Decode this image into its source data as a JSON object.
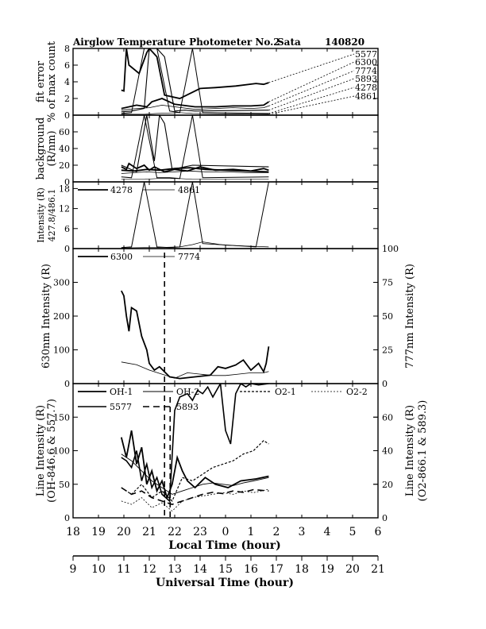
{
  "chart_data": {
    "title": "Airglow Temperature Photometer No.2",
    "station": "Sata",
    "date": "140820",
    "type": "line",
    "x_local": {
      "label": "Local Time (hour)",
      "range": [
        18,
        30
      ],
      "tick_labels": [
        "18",
        "19",
        "20",
        "21",
        "22",
        "23",
        "0",
        "1",
        "2",
        "3",
        "4",
        "5",
        "6"
      ]
    },
    "x_ut": {
      "label": "Universal Time (hour)",
      "range": [
        9,
        21
      ],
      "tick_labels": [
        "9",
        "10",
        "11",
        "12",
        "13",
        "14",
        "15",
        "16",
        "17",
        "18",
        "19",
        "20",
        "21"
      ]
    },
    "panels": [
      {
        "id": "fit_error",
        "ylabel": "fit error",
        "ylabel2": "% of max count",
        "ylim": [
          0,
          8
        ],
        "yticks": [
          "0",
          "2",
          "4",
          "6",
          "8"
        ],
        "legend": [
          "5577",
          "6300",
          "7774",
          "5893",
          "4278",
          "4861"
        ],
        "series": [
          {
            "name": "5577",
            "x": [
              19.9,
              20.0,
              20.1,
              20.2,
              20.6,
              20.9,
              21.0,
              21.3,
              21.6,
              22.2,
              23.0,
              23.6,
              24.4,
              25.2,
              25.5,
              25.7
            ],
            "y": [
              3.0,
              2.9,
              8.0,
              6.0,
              5.0,
              7.5,
              8.0,
              7.0,
              2.4,
              2.0,
              3.2,
              3.3,
              3.5,
              3.8,
              3.7,
              3.9
            ]
          },
          {
            "name": "6300",
            "x": [
              19.9,
              20.5,
              20.9,
              21.1,
              21.5,
              22.0,
              22.8,
              23.6,
              24.3,
              25.0,
              25.5,
              25.7
            ],
            "y": [
              0.8,
              1.2,
              1.0,
              1.6,
              2.0,
              1.3,
              1.0,
              1.0,
              1.1,
              1.1,
              1.2,
              1.6
            ]
          },
          {
            "name": "7774",
            "x": [
              19.9,
              20.5,
              21.0,
              21.5,
              22.0,
              22.8,
              23.6,
              24.3,
              25.0,
              25.5,
              25.7
            ],
            "y": [
              0.6,
              0.8,
              0.9,
              1.2,
              1.0,
              0.7,
              0.8,
              0.9,
              0.8,
              0.9,
              1.1
            ]
          },
          {
            "name": "5893",
            "x": [
              19.9,
              20.3,
              20.8,
              21.0,
              21.3,
              21.6,
              22.0,
              22.4,
              22.8,
              25.7
            ],
            "y": [
              0.4,
              0.5,
              0.8,
              8.0,
              8.0,
              7.0,
              0.5,
              0.6,
              0.5,
              0.6
            ]
          },
          {
            "name": "4278",
            "x": [
              19.9,
              20.3,
              20.8,
              21.3,
              21.8,
              22.2,
              22.7,
              23.1,
              25.7
            ],
            "y": [
              0.2,
              0.3,
              8.0,
              8.0,
              0.5,
              0.3,
              8.0,
              0.3,
              0.2
            ]
          },
          {
            "name": "4861",
            "x": [
              19.9,
              20.8,
              21.3,
              22.2,
              22.7,
              25.0,
              25.7
            ],
            "y": [
              0.1,
              0.1,
              0.2,
              0.3,
              0.2,
              0.1,
              0.1
            ]
          }
        ]
      },
      {
        "id": "background",
        "ylabel": "background",
        "ylabel2": "(R/nm)",
        "ylim": [
          0,
          80
        ],
        "yticks": [
          "0",
          "20",
          "40",
          "60"
        ],
        "series": [
          {
            "name": "5577",
            "x": [
              19.9,
              20.1,
              20.2,
              20.5,
              20.8,
              21.0,
              21.2,
              21.6,
              22.0,
              22.5,
              23.0,
              23.6,
              24.3,
              25.0,
              25.5,
              25.7
            ],
            "y": [
              18,
              15,
              22,
              16,
              20,
              14,
              18,
              12,
              15,
              13,
              18,
              14,
              15,
              13,
              16,
              14
            ]
          },
          {
            "name": "6300",
            "x": [
              19.9,
              20.4,
              20.9,
              21.4,
              22.0,
              22.6,
              23.2,
              24.0,
              24.8,
              25.7
            ],
            "y": [
              14,
              13,
              15,
              14,
              16,
              17,
              15,
              14,
              13,
              12
            ]
          },
          {
            "name": "7774",
            "x": [
              19.9,
              20.4,
              20.9,
              21.4,
              22.0,
              22.6,
              23.2,
              24.0,
              24.8,
              25.7
            ],
            "y": [
              10,
              11,
              12,
              11,
              12,
              13,
              12,
              12,
              11,
              11
            ]
          },
          {
            "name": "5893",
            "x": [
              19.9,
              20.5,
              20.9,
              21.2,
              21.4,
              21.6,
              21.9,
              22.7,
              25.7
            ],
            "y": [
              20,
              12,
              80,
              25,
              80,
              70,
              15,
              20,
              18
            ]
          },
          {
            "name": "4278",
            "x": [
              19.9,
              20.3,
              20.8,
              21.3,
              21.8,
              22.2,
              22.7,
              23.1,
              25.7
            ],
            "y": [
              6,
              5,
              80,
              5,
              5,
              4,
              80,
              5,
              6
            ]
          },
          {
            "name": "4861",
            "x": [
              19.9,
              20.8,
              21.3,
              22.2,
              22.7,
              25.0,
              25.7
            ],
            "y": [
              3,
              3,
              4,
              4,
              3,
              3,
              3
            ]
          }
        ]
      },
      {
        "id": "intensity_427",
        "ylabel": "Intensity (R)",
        "ylabel2": "427.8/486.1",
        "ylim": [
          0,
          20
        ],
        "yticks": [
          "0",
          "6",
          "12",
          "18"
        ],
        "legend": [
          "4278",
          "4861"
        ],
        "series": [
          {
            "name": "4278",
            "x": [
              19.9,
              20.3,
              20.8,
              21.3,
              21.8,
              22.2,
              22.7,
              23.1,
              25.2,
              25.7
            ],
            "y": [
              0.3,
              0.5,
              20,
              0.5,
              0.3,
              0.5,
              20,
              1.5,
              0.5,
              20
            ]
          },
          {
            "name": "4861",
            "x": [
              19.9,
              20.8,
              21.3,
              22.2,
              22.7,
              23.1,
              24.0,
              25.7
            ],
            "y": [
              0.2,
              0.3,
              0.3,
              0.5,
              1.2,
              2.0,
              1.0,
              0.5
            ]
          }
        ]
      },
      {
        "id": "630_777",
        "ylabel": "630nm Intensity (R)",
        "ylabel_right": "777nm Intensity (R)",
        "ylim": [
          0,
          400
        ],
        "ylim_right": [
          0,
          100
        ],
        "yticks": [
          "0",
          "100",
          "200",
          "300"
        ],
        "yticks_right": [
          "0",
          "25",
          "50",
          "75",
          "100"
        ],
        "legend": [
          "6300",
          "7774"
        ],
        "series": [
          {
            "name": "6300",
            "axis": "left",
            "x": [
              19.9,
              20.0,
              20.1,
              20.2,
              20.3,
              20.5,
              20.7,
              20.9,
              21.0,
              21.2,
              21.4,
              21.6,
              21.8,
              22.2,
              22.8,
              23.4,
              23.7,
              24.0,
              24.4,
              24.7,
              25.0,
              25.3,
              25.5,
              25.6,
              25.7
            ],
            "y": [
              275,
              260,
              200,
              155,
              225,
              215,
              140,
              100,
              60,
              40,
              50,
              35,
              20,
              15,
              20,
              25,
              50,
              45,
              55,
              70,
              40,
              60,
              35,
              60,
              110
            ]
          },
          {
            "name": "7774",
            "axis": "right",
            "x": [
              19.9,
              20.5,
              21.0,
              21.5,
              22.0,
              22.5,
              23.0,
              23.5,
              24.0,
              24.5,
              25.0,
              25.5,
              25.7
            ],
            "y": [
              16,
              14,
              10,
              7,
              4,
              8,
              7,
              6,
              6,
              7,
              8,
              8,
              9
            ]
          }
        ]
      },
      {
        "id": "oh_o2",
        "ylabel": "Line Intensity (R)",
        "ylabel2": "(OH-846.6 & 557.7)",
        "ylabel_right": "Line Intensity (R)",
        "ylabel_right2": "(O2-866.1 & 589.3)",
        "ylim": [
          0,
          200
        ],
        "ylim_right": [
          0,
          80
        ],
        "yticks": [
          "0",
          "50",
          "100",
          "150"
        ],
        "yticks_right": [
          "0",
          "20",
          "40",
          "60"
        ],
        "legend": [
          "OH-1",
          "OH-2",
          "O2-1",
          "O2-2",
          "5577",
          "5893"
        ],
        "series": [
          {
            "name": "OH-1",
            "axis": "left",
            "x": [
              19.9,
              20.1,
              20.3,
              20.5,
              20.7,
              20.9,
              21.1,
              21.3,
              21.5,
              21.7,
              21.9,
              22.1,
              22.3,
              22.5,
              22.8,
              23.2,
              23.6,
              24.1,
              24.6,
              25.2,
              25.7
            ],
            "y": [
              120,
              90,
              130,
              80,
              105,
              50,
              70,
              40,
              55,
              30,
              50,
              90,
              70,
              55,
              45,
              60,
              50,
              45,
              55,
              58,
              62
            ]
          },
          {
            "name": "OH-2",
            "axis": "left",
            "x": [
              19.9,
              20.3,
              20.7,
              21.1,
              21.5,
              21.9,
              22.3,
              22.7,
              23.1,
              23.5,
              23.9,
              24.3,
              24.7,
              25.1,
              25.7
            ],
            "y": [
              95,
              85,
              70,
              55,
              45,
              35,
              40,
              45,
              50,
              52,
              50,
              48,
              52,
              55,
              60
            ]
          },
          {
            "name": "O2-1",
            "axis": "right",
            "x": [
              19.9,
              20.3,
              20.7,
              21.1,
              21.5,
              21.9,
              22.3,
              22.7,
              23.1,
              23.5,
              23.9,
              24.3,
              24.7,
              25.1,
              25.5,
              25.7
            ],
            "y": [
              18,
              14,
              20,
              12,
              16,
              10,
              24,
              22,
              26,
              30,
              32,
              34,
              38,
              40,
              46,
              44
            ]
          },
          {
            "name": "O2-2",
            "axis": "right",
            "x": [
              19.9,
              20.3,
              20.7,
              21.1,
              21.5,
              21.9,
              22.3,
              22.7,
              23.1,
              23.5,
              23.9,
              24.3,
              24.7,
              25.1,
              25.7
            ],
            "y": [
              10,
              8,
              12,
              6,
              9,
              4,
              10,
              12,
              13,
              14,
              15,
              14,
              16,
              15,
              17
            ]
          },
          {
            "name": "5577",
            "axis": "left",
            "x": [
              19.9,
              20.1,
              20.3,
              20.5,
              20.7,
              20.9,
              21.1,
              21.3,
              21.5,
              21.8,
              22.0,
              22.2,
              22.5,
              22.7,
              22.9,
              23.1,
              23.3,
              23.5,
              23.8,
              24.0,
              24.2,
              24.4,
              24.6,
              24.8,
              25.0,
              25.3,
              25.7
            ],
            "y": [
              90,
              85,
              75,
              100,
              55,
              80,
              45,
              60,
              35,
              25,
              160,
              180,
              185,
              175,
              190,
              185,
              195,
              180,
              200,
              130,
              110,
              185,
              200,
              195,
              200,
              198,
              200
            ]
          },
          {
            "name": "5893",
            "axis": "left",
            "x": [
              19.9,
              20.3,
              20.7,
              21.1,
              21.5,
              21.9,
              22.3,
              22.7,
              23.1,
              23.5,
              23.9,
              24.3,
              24.7,
              25.1,
              25.7
            ],
            "y": [
              45,
              35,
              40,
              30,
              25,
              20,
              25,
              30,
              35,
              38,
              36,
              40,
              38,
              42,
              40
            ]
          }
        ]
      }
    ],
    "markers": [
      {
        "style": "dashed",
        "x_local": 21.6
      },
      {
        "style": "dashed",
        "x_local": 21.82
      }
    ]
  }
}
